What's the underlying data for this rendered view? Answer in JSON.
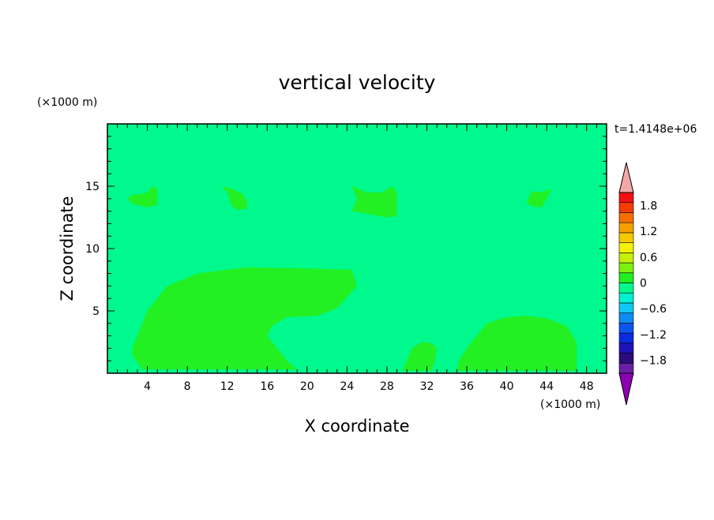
{
  "chart_data": {
    "type": "heatmap",
    "title": "vertical velocity",
    "xlabel": "X coordinate",
    "ylabel": "Z coordinate",
    "x_unit": "(×1000 m)",
    "y_unit": "(×1000 m)",
    "time_label": "t=1.4148e+06",
    "xlim": [
      0,
      50
    ],
    "ylim": [
      0,
      20
    ],
    "x_ticks": [
      "4",
      "8",
      "12",
      "16",
      "20",
      "24",
      "28",
      "32",
      "36",
      "40",
      "44",
      "48"
    ],
    "y_ticks": [
      "5",
      "10",
      "15"
    ],
    "background_color": "#00f98c",
    "colorbar": {
      "labels": [
        "1.8",
        "1.2",
        "0.6",
        "0",
        "−0.6",
        "−1.2",
        "−1.8"
      ],
      "levels": [
        1.8,
        1.2,
        0.6,
        0,
        -0.6,
        -1.2,
        -1.8
      ],
      "min": -2.1,
      "max": 2.1,
      "over_color": "#f2a8a8",
      "under_color": "#8c00b4",
      "colors": [
        "#6a1fa6",
        "#2a0c7a",
        "#1e12b8",
        "#0a2be0",
        "#0d55f0",
        "#0f8cf5",
        "#10c8f5",
        "#00f0d0",
        "#00f98c",
        "#20f020",
        "#7ef00e",
        "#c4f00a",
        "#f4f002",
        "#f6c800",
        "#f6a000",
        "#f66e00",
        "#f43c00",
        "#f21010"
      ]
    },
    "regions": [
      {
        "level": "0 to 0.3",
        "color": "#22f022",
        "outline": [
          [
            2.5,
            2
          ],
          [
            3,
            3
          ],
          [
            4,
            5
          ],
          [
            6,
            7
          ],
          [
            9,
            8
          ],
          [
            14,
            8.5
          ],
          [
            20,
            8.4
          ],
          [
            24.5,
            8.3
          ],
          [
            25,
            7
          ],
          [
            23,
            5.2
          ],
          [
            21,
            4.6
          ],
          [
            18,
            4.5
          ],
          [
            16.5,
            3.8
          ],
          [
            16,
            3
          ],
          [
            17,
            2
          ],
          [
            18,
            1
          ],
          [
            19,
            0.3
          ],
          [
            3.5,
            0.3
          ],
          [
            3,
            0.9
          ],
          [
            2.5,
            1.5
          ]
        ]
      },
      {
        "level": "0 to 0.3",
        "color": "#22f022",
        "outline": [
          [
            29.5,
            0.2
          ],
          [
            30,
            1
          ],
          [
            30.5,
            2
          ],
          [
            31.5,
            2.5
          ],
          [
            32.5,
            2.4
          ],
          [
            33,
            2
          ],
          [
            32.8,
            1
          ],
          [
            32.5,
            0.2
          ]
        ]
      },
      {
        "level": "0 to 0.3",
        "color": "#22f022",
        "outline": [
          [
            35,
            0.2
          ],
          [
            35.2,
            1
          ],
          [
            36,
            2
          ],
          [
            37,
            3
          ],
          [
            38,
            4
          ],
          [
            40,
            4.5
          ],
          [
            42,
            4.6
          ],
          [
            44,
            4.4
          ],
          [
            46,
            3.8
          ],
          [
            47,
            2.5
          ],
          [
            47,
            0.2
          ]
        ]
      },
      {
        "level": "0 to 0.3",
        "color": "#22f022",
        "outline": [
          [
            2,
            14
          ],
          [
            2.5,
            13.6
          ],
          [
            4,
            13.3
          ],
          [
            5,
            13.5
          ],
          [
            5,
            14.8
          ],
          [
            4.5,
            15
          ],
          [
            4,
            14.5
          ],
          [
            3.5,
            14.4
          ],
          [
            2.5,
            14.3
          ]
        ]
      },
      {
        "level": "0 to 0.3",
        "color": "#22f022",
        "outline": [
          [
            11.5,
            15
          ],
          [
            12,
            14.5
          ],
          [
            12.4,
            13.5
          ],
          [
            13,
            13.1
          ],
          [
            14,
            13.2
          ],
          [
            14,
            13.8
          ],
          [
            13.5,
            14.4
          ],
          [
            12.5,
            14.8
          ]
        ]
      },
      {
        "level": "0 to 0.3",
        "color": "#22f022",
        "outline": [
          [
            24.5,
            15
          ],
          [
            25,
            14
          ],
          [
            24.5,
            13
          ],
          [
            26,
            12.8
          ],
          [
            28,
            12.5
          ],
          [
            29,
            12.6
          ],
          [
            29,
            14.5
          ],
          [
            28.5,
            15
          ],
          [
            27.5,
            14.5
          ],
          [
            26,
            14.5
          ]
        ]
      },
      {
        "level": "0 to 0.3",
        "color": "#22f022",
        "outline": [
          [
            42,
            13.7
          ],
          [
            42.5,
            13.4
          ],
          [
            43.5,
            13.3
          ],
          [
            44,
            14
          ],
          [
            44.5,
            14.8
          ],
          [
            43.5,
            14.5
          ],
          [
            42.5,
            14.6
          ]
        ]
      }
    ]
  }
}
